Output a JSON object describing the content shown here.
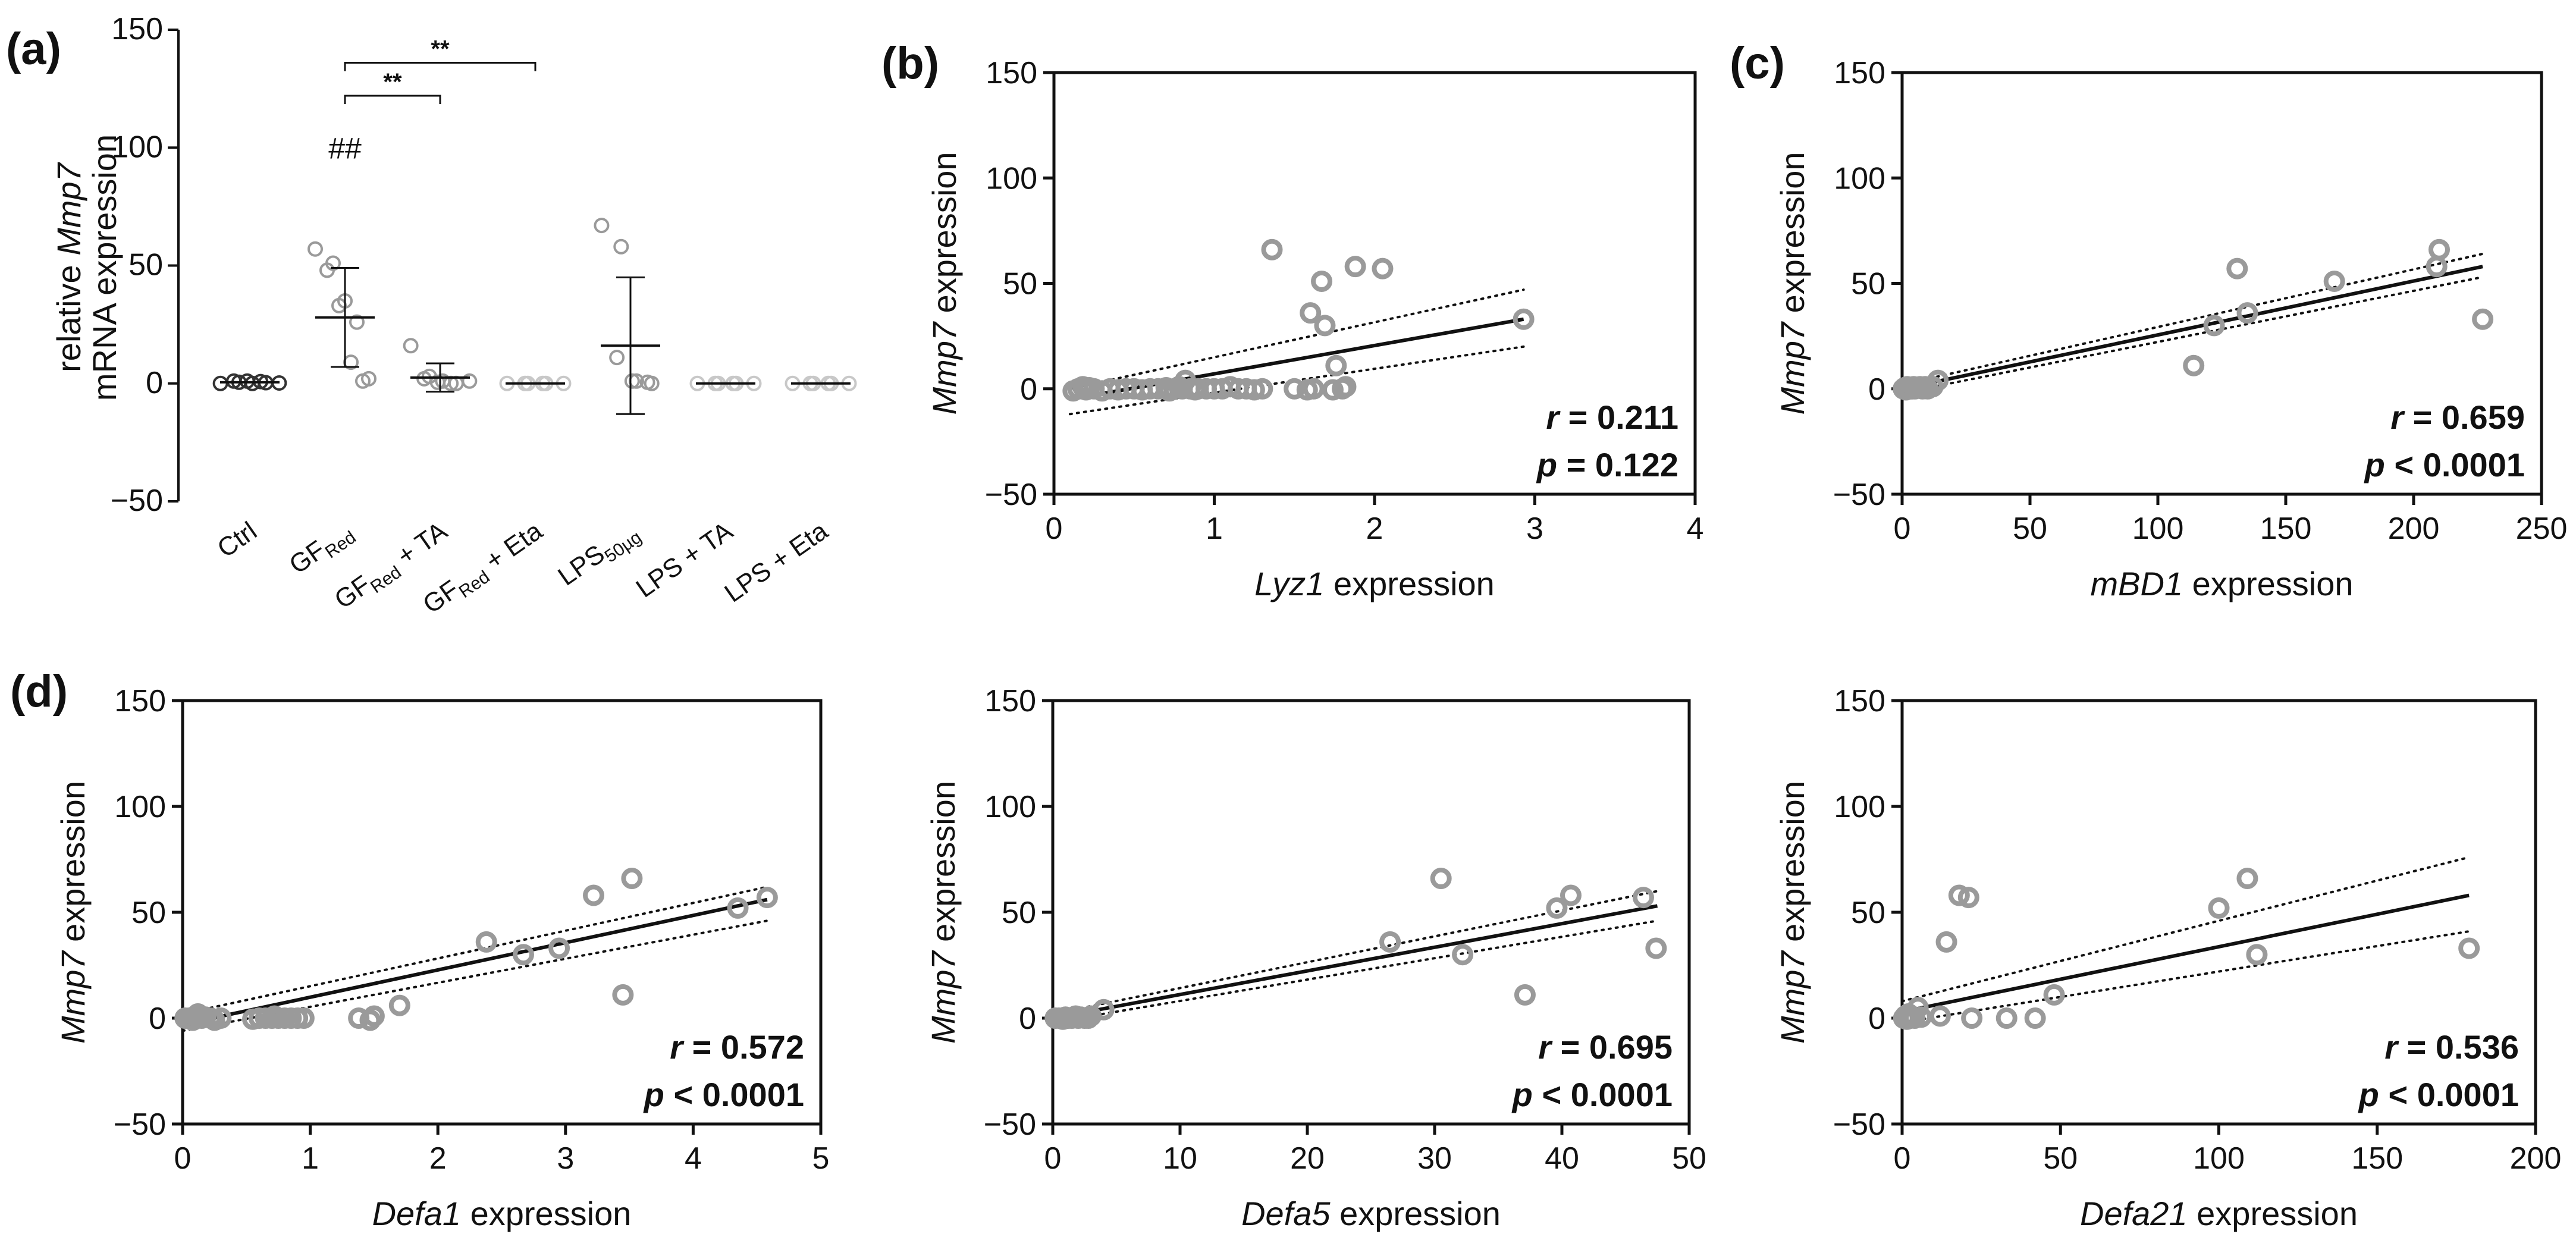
{
  "panels": {
    "a": {
      "label": "(a)",
      "ylabel_line1_prefix": "relative ",
      "ylabel_line1_italic": "Mmp7",
      "ylabel_line2": "mRNA expression",
      "yticks": [
        "150",
        "100",
        "50",
        "0",
        "−50"
      ],
      "categories": [
        {
          "main": "Ctrl",
          "sub": "",
          "suffix": ""
        },
        {
          "main": "GF",
          "sub": "Red",
          "suffix": ""
        },
        {
          "main": "GF",
          "sub": "Red",
          "suffix": " + TA"
        },
        {
          "main": "GF",
          "sub": "Red",
          "suffix": " + Eta"
        },
        {
          "main": "LPS",
          "sub": "50µg",
          "suffix": ""
        },
        {
          "main": "LPS + TA",
          "sub": "",
          "suffix": ""
        },
        {
          "main": "LPS + Eta",
          "sub": "",
          "suffix": ""
        }
      ],
      "hash_label": "##",
      "sig_labels": [
        "**",
        "**"
      ]
    },
    "b": {
      "label": "(b)",
      "x_italic": "Lyz1",
      "x_rest": " expression",
      "y_italic": "Mmp7",
      "y_rest": " expression",
      "r": "r = 0.211",
      "p": "p = 0.122",
      "yticks": [
        "150",
        "100",
        "50",
        "0",
        "−50"
      ],
      "xticks": [
        "0",
        "1",
        "2",
        "3",
        "4"
      ]
    },
    "c": {
      "label": "(c)",
      "x_italic": "mBD1",
      "x_rest": " expression",
      "y_italic": "Mmp7",
      "y_rest": " expression",
      "r": "r = 0.659",
      "p": "p < 0.0001",
      "yticks": [
        "150",
        "100",
        "50",
        "0",
        "−50"
      ],
      "xticks": [
        "0",
        "50",
        "100",
        "150",
        "200",
        "250"
      ]
    },
    "d1": {
      "label": "(d)",
      "x_italic": "Defa1",
      "x_rest": " expression",
      "y_italic": "Mmp7",
      "y_rest": " expression",
      "r": "r = 0.572",
      "p": "p < 0.0001",
      "yticks": [
        "150",
        "100",
        "50",
        "0",
        "−50"
      ],
      "xticks": [
        "0",
        "1",
        "2",
        "3",
        "4",
        "5"
      ]
    },
    "d2": {
      "label": "",
      "x_italic": "Defa5",
      "x_rest": " expression",
      "y_italic": "Mmp7",
      "y_rest": " expression",
      "r": "r = 0.695",
      "p": "p < 0.0001",
      "yticks": [
        "150",
        "100",
        "50",
        "0",
        "−50"
      ],
      "xticks": [
        "0",
        "10",
        "20",
        "30",
        "40",
        "50"
      ]
    },
    "d3": {
      "label": "",
      "x_italic": "Defa21",
      "x_rest": " expression",
      "y_italic": "Mmp7",
      "y_rest": " expression",
      "r": "r = 0.536",
      "p": "p < 0.0001",
      "yticks": [
        "150",
        "100",
        "50",
        "0",
        "−50"
      ],
      "xticks": [
        "0",
        "50",
        "100",
        "150",
        "200"
      ]
    }
  },
  "colors": {
    "points": "#9a9a9a",
    "points_ctrl": "#333333",
    "points_light": "#c8c8c8",
    "line": "#111111",
    "axis": "#111111"
  },
  "chart_data": [
    {
      "type": "scatter",
      "panel": "a",
      "ylim": [
        -50,
        150
      ],
      "categories": [
        "Ctrl",
        "GF Red",
        "GF Red + TA",
        "GF Red + Eta",
        "LPS 50µg",
        "LPS + TA",
        "LPS + Eta"
      ],
      "groups": [
        {
          "name": "Ctrl",
          "mean": 0.5,
          "sd": 0,
          "points": [
            0,
            0.5,
            1,
            0,
            1,
            0.3,
            0.8,
            0.2
          ]
        },
        {
          "name": "GF Red",
          "mean": 28,
          "sd": 21,
          "points": [
            57,
            51,
            48,
            35,
            33,
            26,
            9,
            2,
            1
          ]
        },
        {
          "name": "GF Red + TA",
          "mean": 2.5,
          "sd": 6,
          "points": [
            16,
            3,
            2,
            1,
            0.5,
            0,
            0,
            1
          ]
        },
        {
          "name": "GF Red + Eta",
          "mean": 0,
          "sd": 0,
          "points": [
            0,
            0,
            0,
            0,
            0,
            0
          ]
        },
        {
          "name": "LPS 50µg",
          "mean": 16,
          "sd": 29,
          "points": [
            67,
            58,
            11,
            1,
            1,
            0,
            0.5
          ]
        },
        {
          "name": "LPS + TA",
          "mean": 0,
          "sd": 0,
          "points": [
            0,
            0,
            0,
            0,
            0,
            0
          ]
        },
        {
          "name": "LPS + Eta",
          "mean": 0,
          "sd": 0,
          "points": [
            0,
            0,
            0,
            0,
            0,
            0
          ]
        }
      ],
      "annotations": [
        "##",
        "**",
        "**"
      ]
    },
    {
      "type": "scatter",
      "panel": "b",
      "xlim": [
        0,
        4
      ],
      "ylim": [
        -50,
        150
      ],
      "r": 0.211,
      "p": "0.122",
      "fit": {
        "x": [
          0.1,
          2.93
        ],
        "y": [
          -5,
          33
        ]
      },
      "ci_upper": {
        "x": [
          0.1,
          2.93
        ],
        "y": [
          0,
          47
        ]
      },
      "ci_lower": {
        "x": [
          0.1,
          2.93
        ],
        "y": [
          -12,
          20
        ]
      },
      "points": [
        [
          0.12,
          -1
        ],
        [
          0.15,
          0
        ],
        [
          0.18,
          1
        ],
        [
          0.2,
          -0.5
        ],
        [
          0.22,
          0.5
        ],
        [
          0.25,
          0
        ],
        [
          0.3,
          -1
        ],
        [
          0.35,
          0
        ],
        [
          0.4,
          -0.5
        ],
        [
          0.45,
          0
        ],
        [
          0.5,
          0
        ],
        [
          0.55,
          -0.5
        ],
        [
          0.6,
          0
        ],
        [
          0.65,
          0
        ],
        [
          0.7,
          0.5
        ],
        [
          0.72,
          -1
        ],
        [
          0.75,
          0
        ],
        [
          0.78,
          1
        ],
        [
          0.8,
          0
        ],
        [
          0.82,
          4
        ],
        [
          0.85,
          0
        ],
        [
          0.88,
          -0.5
        ],
        [
          0.9,
          0
        ],
        [
          0.95,
          0
        ],
        [
          1.0,
          0
        ],
        [
          1.05,
          0
        ],
        [
          1.1,
          1
        ],
        [
          1.15,
          0
        ],
        [
          1.2,
          0
        ],
        [
          1.25,
          -0.5
        ],
        [
          1.3,
          0
        ],
        [
          1.36,
          66
        ],
        [
          1.5,
          0
        ],
        [
          1.58,
          -0.5
        ],
        [
          1.6,
          36
        ],
        [
          1.62,
          0
        ],
        [
          1.67,
          51
        ],
        [
          1.69,
          30
        ],
        [
          1.74,
          -0.5
        ],
        [
          1.76,
          11
        ],
        [
          1.8,
          0
        ],
        [
          1.82,
          1
        ],
        [
          1.88,
          58
        ],
        [
          2.05,
          57
        ],
        [
          2.93,
          33
        ]
      ]
    },
    {
      "type": "scatter",
      "panel": "c",
      "xlim": [
        0,
        250
      ],
      "ylim": [
        -50,
        150
      ],
      "r": 0.659,
      "p": "< 0.0001",
      "fit": {
        "x": [
          0,
          227
        ],
        "y": [
          0,
          58
        ]
      },
      "ci_upper": {
        "x": [
          0,
          227
        ],
        "y": [
          2,
          64
        ]
      },
      "ci_lower": {
        "x": [
          0,
          227
        ],
        "y": [
          -2,
          53
        ]
      },
      "points": [
        [
          0.5,
          0
        ],
        [
          1,
          0.5
        ],
        [
          1.5,
          -0.5
        ],
        [
          2,
          1
        ],
        [
          2.5,
          0
        ],
        [
          3,
          0.5
        ],
        [
          3.5,
          0
        ],
        [
          4,
          0
        ],
        [
          4.5,
          1
        ],
        [
          5,
          0
        ],
        [
          6,
          0.5
        ],
        [
          7,
          1
        ],
        [
          8,
          0
        ],
        [
          9,
          1
        ],
        [
          10,
          0
        ],
        [
          12,
          1
        ],
        [
          14,
          4
        ],
        [
          114,
          11
        ],
        [
          122,
          30
        ],
        [
          131,
          57
        ],
        [
          135,
          36
        ],
        [
          169,
          51
        ],
        [
          209,
          58
        ],
        [
          210,
          66
        ],
        [
          227,
          33
        ]
      ]
    },
    {
      "type": "scatter",
      "panel": "d1",
      "xlim": [
        0,
        5
      ],
      "ylim": [
        -50,
        150
      ],
      "r": 0.572,
      "p": "< 0.0001",
      "fit": {
        "x": [
          0,
          4.58
        ],
        "y": [
          -3,
          56
        ]
      },
      "ci_upper": {
        "x": [
          0,
          4.58
        ],
        "y": [
          2,
          62
        ]
      },
      "ci_lower": {
        "x": [
          0,
          4.58
        ],
        "y": [
          -6,
          46
        ]
      },
      "points": [
        [
          0.02,
          0
        ],
        [
          0.05,
          0
        ],
        [
          0.08,
          -1
        ],
        [
          0.1,
          1
        ],
        [
          0.12,
          2
        ],
        [
          0.15,
          0
        ],
        [
          0.18,
          0.5
        ],
        [
          0.22,
          0
        ],
        [
          0.25,
          -1
        ],
        [
          0.3,
          0
        ],
        [
          0.55,
          -0.5
        ],
        [
          0.6,
          0
        ],
        [
          0.65,
          0
        ],
        [
          0.7,
          0
        ],
        [
          0.72,
          1
        ],
        [
          0.75,
          0
        ],
        [
          0.8,
          0
        ],
        [
          0.85,
          0
        ],
        [
          0.9,
          0
        ],
        [
          0.95,
          0
        ],
        [
          1.38,
          0
        ],
        [
          1.47,
          -1
        ],
        [
          1.5,
          1
        ],
        [
          1.7,
          6
        ],
        [
          2.38,
          36
        ],
        [
          2.67,
          30
        ],
        [
          2.95,
          33
        ],
        [
          3.22,
          58
        ],
        [
          3.45,
          11
        ],
        [
          3.52,
          66
        ],
        [
          4.35,
          52
        ],
        [
          4.58,
          57
        ]
      ]
    },
    {
      "type": "scatter",
      "panel": "d2",
      "xlim": [
        0,
        50
      ],
      "ylim": [
        -50,
        150
      ],
      "r": 0.695,
      "p": "< 0.0001",
      "fit": {
        "x": [
          0,
          47.5
        ],
        "y": [
          0,
          53
        ]
      },
      "ci_upper": {
        "x": [
          0,
          47.5
        ],
        "y": [
          2,
          60
        ]
      },
      "ci_lower": {
        "x": [
          0,
          47.5
        ],
        "y": [
          -2,
          46
        ]
      },
      "points": [
        [
          0.2,
          0
        ],
        [
          0.5,
          0
        ],
        [
          0.8,
          -0.5
        ],
        [
          1.0,
          0.5
        ],
        [
          1.2,
          0
        ],
        [
          1.5,
          0
        ],
        [
          1.8,
          1
        ],
        [
          2.0,
          0
        ],
        [
          2.2,
          0.5
        ],
        [
          2.5,
          0
        ],
        [
          2.8,
          0
        ],
        [
          3.0,
          1
        ],
        [
          4.0,
          4
        ],
        [
          26.5,
          36
        ],
        [
          30.5,
          66
        ],
        [
          32.2,
          30
        ],
        [
          37.1,
          11
        ],
        [
          39.6,
          52
        ],
        [
          40.7,
          58
        ],
        [
          46.4,
          57
        ],
        [
          47.4,
          33
        ]
      ]
    },
    {
      "type": "scatter",
      "panel": "d3",
      "xlim": [
        0,
        200
      ],
      "ylim": [
        -50,
        150
      ],
      "r": 0.536,
      "p": "< 0.0001",
      "fit": {
        "x": [
          0,
          179
        ],
        "y": [
          3,
          58
        ]
      },
      "ci_upper": {
        "x": [
          0,
          179
        ],
        "y": [
          8,
          76
        ]
      },
      "ci_lower": {
        "x": [
          0,
          179
        ],
        "y": [
          -2,
          41
        ]
      },
      "points": [
        [
          0.5,
          0
        ],
        [
          1,
          1
        ],
        [
          1.5,
          -0.5
        ],
        [
          2,
          2
        ],
        [
          2.5,
          0
        ],
        [
          3,
          1
        ],
        [
          4,
          0
        ],
        [
          5,
          5
        ],
        [
          6,
          0.5
        ],
        [
          12,
          1
        ],
        [
          14,
          36
        ],
        [
          18,
          58
        ],
        [
          21,
          57
        ],
        [
          22,
          0
        ],
        [
          33,
          0
        ],
        [
          42,
          0
        ],
        [
          48,
          11
        ],
        [
          100,
          52
        ],
        [
          109,
          66
        ],
        [
          112,
          30
        ],
        [
          179,
          33
        ]
      ]
    }
  ]
}
